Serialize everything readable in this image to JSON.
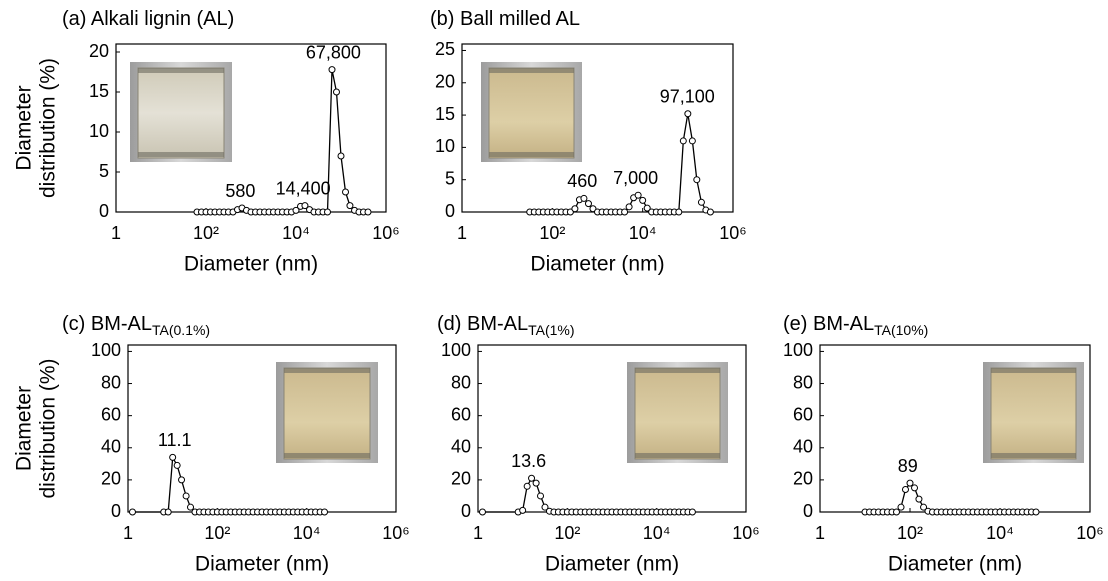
{
  "chart_data": [
    {
      "type": "line",
      "title": "(a) Alkali lignin (AL)",
      "xlabel": "Diameter (nm)",
      "ylabel": [
        "Diameter",
        "distribution (%)"
      ],
      "xscale": "log",
      "xlim": [
        1,
        1000000
      ],
      "ylim": [
        0,
        21
      ],
      "xticks": [
        1,
        {
          "value": 100,
          "label": "10²"
        },
        {
          "value": 10000,
          "label": "10⁴"
        },
        {
          "value": 1000000,
          "label": "10⁶"
        }
      ],
      "yticks": [
        0,
        5,
        10,
        15,
        20
      ],
      "color": "#000000",
      "marker_fill": "#ffffff",
      "x": [
        63.1,
        79.4,
        100,
        126,
        158,
        200,
        251,
        316,
        398,
        501,
        631,
        794,
        1000,
        1260,
        1580,
        2000,
        2510,
        3160,
        3980,
        5010,
        6310,
        7940,
        10000,
        12600,
        15800,
        20000,
        25100,
        31600,
        39800,
        50100,
        63100,
        79400,
        100000,
        126000,
        158000,
        200000,
        251000,
        316000,
        398000
      ],
      "values": [
        0,
        0,
        0,
        0,
        0,
        0,
        0,
        0,
        0,
        0.3,
        0.5,
        0.2,
        0,
        0,
        0,
        0,
        0,
        0,
        0,
        0,
        0,
        0,
        0.2,
        0.7,
        0.8,
        0.3,
        0,
        0,
        0,
        0,
        17.8,
        15,
        7,
        2.5,
        0.8,
        0.2,
        0,
        0,
        0
      ],
      "peak_labels": [
        580,
        {
          "value": 14400,
          "label": "14,400"
        },
        {
          "value": 67800,
          "label": "67,800"
        }
      ]
    },
    {
      "type": "line",
      "title": "(b) Ball milled AL",
      "xlabel": "Diameter (nm)",
      "xscale": "log",
      "xlim": [
        1,
        1000000
      ],
      "ylim": [
        0,
        26
      ],
      "xticks": [
        1,
        {
          "value": 100,
          "label": "10²"
        },
        {
          "value": 10000,
          "label": "10⁴"
        },
        {
          "value": 1000000,
          "label": "10⁶"
        }
      ],
      "yticks": [
        0,
        5,
        10,
        15,
        20,
        25
      ],
      "color": "#000000",
      "marker_fill": "#ffffff",
      "x": [
        31.6,
        39.8,
        50.1,
        63.1,
        79.4,
        100,
        126,
        158,
        200,
        251,
        316,
        398,
        501,
        631,
        794,
        1000,
        1260,
        1580,
        2000,
        2510,
        3160,
        3980,
        5010,
        6310,
        7940,
        10000,
        12600,
        15800,
        20000,
        25100,
        31600,
        39800,
        50100,
        63100,
        79400,
        100000,
        126000,
        158000,
        200000,
        251000,
        316000
      ],
      "values": [
        0,
        0,
        0,
        0,
        0,
        0,
        0,
        0,
        0,
        0,
        0.5,
        1.9,
        2.1,
        1.3,
        0.5,
        0,
        0,
        0,
        0,
        0,
        0,
        0,
        0.8,
        2.2,
        2.6,
        1.8,
        0.6,
        0,
        0,
        0,
        0,
        0,
        0,
        0,
        11,
        15.2,
        11,
        5,
        1.5,
        0.3,
        0
      ],
      "peak_labels": [
        460,
        {
          "value": 7000,
          "label": "7,000"
        },
        {
          "value": 97100,
          "label": "97,100"
        }
      ]
    },
    {
      "type": "line",
      "title": "(c) BM-AL",
      "title_subscript": "TA(0.1%)",
      "xlabel": "Diameter (nm)",
      "ylabel": [
        "Diameter",
        "distribution (%)"
      ],
      "xscale": "log",
      "xlim": [
        1,
        1000000
      ],
      "ylim": [
        0,
        104
      ],
      "xticks": [
        1,
        {
          "value": 100,
          "label": "10²"
        },
        {
          "value": 10000,
          "label": "10⁴"
        },
        {
          "value": 1000000,
          "label": "10⁶"
        }
      ],
      "yticks": [
        0,
        20,
        40,
        60,
        80,
        100
      ],
      "color": "#000000",
      "marker_fill": "#ffffff",
      "x": [
        1.26,
        6.31,
        7.94,
        10,
        12.6,
        15.8,
        20,
        25.1,
        31.6,
        39.8,
        50.1,
        63.1,
        79.4,
        100,
        126,
        158,
        200,
        251,
        316,
        398,
        501,
        631,
        794,
        1000,
        1260,
        1580,
        2000,
        2510,
        3160,
        3980,
        5010,
        6310,
        7940,
        10000,
        12600,
        15800,
        20000,
        25100
      ],
      "values": [
        0,
        0,
        0,
        34,
        29,
        20,
        10,
        3,
        0,
        0,
        0,
        0,
        0,
        0,
        0,
        0,
        0,
        0,
        0,
        0,
        0,
        0,
        0,
        0,
        0,
        0,
        0,
        0,
        0,
        0,
        0,
        0,
        0,
        0,
        0,
        0,
        0,
        0
      ],
      "peak_labels": [
        11.1
      ]
    },
    {
      "type": "line",
      "title": "(d) BM-AL",
      "title_subscript": "TA(1%)",
      "xlabel": "Diameter (nm)",
      "xscale": "log",
      "xlim": [
        1,
        1000000
      ],
      "ylim": [
        0,
        104
      ],
      "xticks": [
        1,
        {
          "value": 100,
          "label": "10²"
        },
        {
          "value": 10000,
          "label": "10⁴"
        },
        {
          "value": 1000000,
          "label": "10⁶"
        }
      ],
      "yticks": [
        0,
        20,
        40,
        60,
        80,
        100
      ],
      "color": "#000000",
      "marker_fill": "#ffffff",
      "x": [
        1.26,
        7.94,
        10,
        12.6,
        15.8,
        20,
        25.1,
        31.6,
        39.8,
        50.1,
        63.1,
        79.4,
        100,
        126,
        158,
        200,
        251,
        316,
        398,
        501,
        631,
        794,
        1000,
        1260,
        1580,
        2000,
        2510,
        3160,
        3980,
        5010,
        6310,
        7940,
        10000,
        12600,
        15800,
        20000,
        25100,
        31600,
        39800,
        50100,
        63100
      ],
      "values": [
        0,
        0,
        1,
        16,
        21,
        18,
        10,
        3,
        0.5,
        0,
        0,
        0,
        0,
        0,
        0,
        0,
        0,
        0,
        0,
        0,
        0,
        0,
        0,
        0,
        0,
        0,
        0,
        0,
        0,
        0,
        0,
        0,
        0,
        0,
        0,
        0,
        0,
        0,
        0,
        0,
        0
      ],
      "peak_labels": [
        13.6
      ]
    },
    {
      "type": "line",
      "title": "(e) BM-AL",
      "title_subscript": "TA(10%)",
      "xlabel": "Diameter (nm)",
      "xscale": "log",
      "xlim": [
        1,
        1000000
      ],
      "ylim": [
        0,
        104
      ],
      "xticks": [
        1,
        {
          "value": 100,
          "label": "10²"
        },
        {
          "value": 10000,
          "label": "10⁴"
        },
        {
          "value": 1000000,
          "label": "10⁶"
        }
      ],
      "yticks": [
        0,
        20,
        40,
        60,
        80,
        100
      ],
      "color": "#000000",
      "marker_fill": "#ffffff",
      "x": [
        10,
        12.6,
        15.8,
        20,
        25.1,
        31.6,
        39.8,
        50.1,
        63.1,
        79.4,
        100,
        126,
        158,
        200,
        251,
        316,
        398,
        501,
        631,
        794,
        1000,
        1260,
        1580,
        2000,
        2510,
        3160,
        3980,
        5010,
        6310,
        7940,
        10000,
        12600,
        15800,
        20000,
        25100,
        31600,
        39800,
        50100,
        63100
      ],
      "values": [
        0,
        0,
        0,
        0,
        0,
        0,
        0,
        0,
        3,
        14,
        18,
        15,
        8,
        3,
        0.5,
        0,
        0,
        0,
        0,
        0,
        0,
        0,
        0,
        0,
        0,
        0,
        0,
        0,
        0,
        0,
        0,
        0,
        0,
        0,
        0,
        0,
        0,
        0,
        0
      ],
      "peak_labels": [
        89
      ]
    }
  ]
}
